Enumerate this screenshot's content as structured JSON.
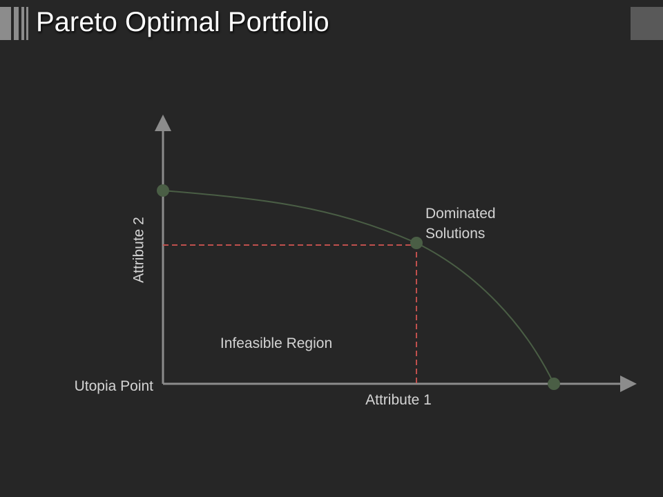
{
  "slide": {
    "title": "Pareto Optimal Portfolio"
  },
  "diagram": {
    "labels": {
      "y_axis": "Attribute 2",
      "x_axis": "Attribute 1",
      "origin": "Utopia Point",
      "region": "Infeasible Region",
      "dominated_line1": "Dominated",
      "dominated_line2": "Solutions"
    },
    "colors": {
      "background": "#262626",
      "axis": "#8c8c8c",
      "curve": "#4a5e45",
      "point": "#4a5e45",
      "dashed_guide": "#c0504d",
      "text": "#d4d4d4",
      "title": "#ffffff"
    }
  }
}
